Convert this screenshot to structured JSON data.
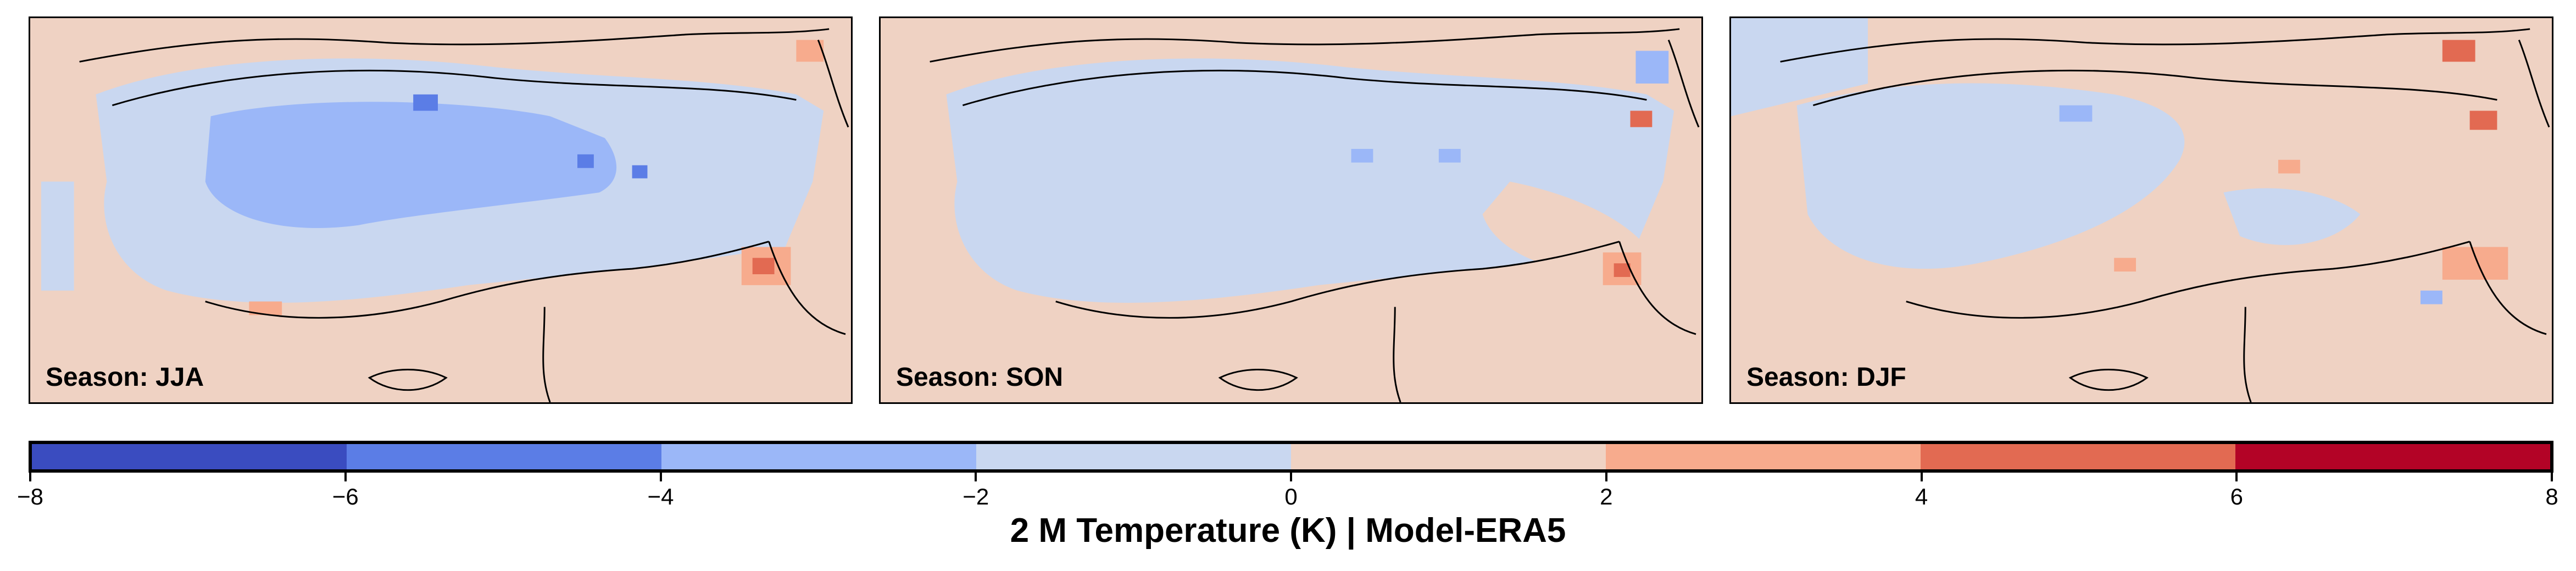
{
  "colorbar": {
    "title": "2 M Temperature (K) | Model-ERA5",
    "min": -8,
    "max": 8,
    "colors": [
      "#3a4cc0",
      "#5b7de6",
      "#9bb7f8",
      "#c9d7f0",
      "#efd2c3",
      "#f7ab8d",
      "#e26a52",
      "#b30326"
    ],
    "ticks": [
      {
        "value": -8,
        "label": "−8"
      },
      {
        "value": -6,
        "label": "−6"
      },
      {
        "value": -4,
        "label": "−4"
      },
      {
        "value": -2,
        "label": "−2"
      },
      {
        "value": 0,
        "label": "0"
      },
      {
        "value": 2,
        "label": "2"
      },
      {
        "value": 4,
        "label": "4"
      },
      {
        "value": 6,
        "label": "6"
      },
      {
        "value": 8,
        "label": "8"
      }
    ]
  },
  "panels": [
    {
      "label": "Season: JJA"
    },
    {
      "label": "Season: SON"
    },
    {
      "label": "Season: DJF"
    }
  ]
}
